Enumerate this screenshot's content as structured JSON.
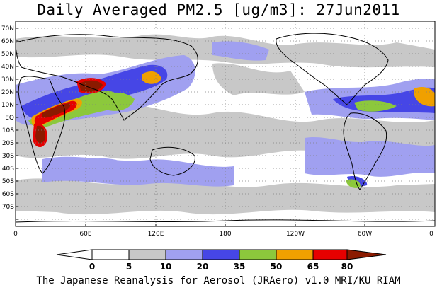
{
  "title": "Daily Averaged PM2.5 [ug/m3]: 27Jun2011",
  "footer": "The Japanese Reanalysis for Aerosol (JRAero) v1.0 MRI/KU_RIAM",
  "latitude_labels": [
    "70N",
    "60N",
    "50N",
    "40N",
    "30N",
    "20N",
    "10N",
    "EQ",
    "10S",
    "20S",
    "30S",
    "40S",
    "50S",
    "60S",
    "70S"
  ],
  "longitude_labels": [
    "0",
    "60E",
    "120E",
    "180",
    "120W",
    "60W",
    "0"
  ],
  "colorbar": {
    "thresholds": [
      "0",
      "5",
      "10",
      "20",
      "35",
      "50",
      "65",
      "80"
    ],
    "colors": [
      "#ffffff",
      "#c8c8c8",
      "#a0a0f0",
      "#4646e6",
      "#8cc83c",
      "#f0a000",
      "#e60000",
      "#8b1a00"
    ]
  },
  "map_meta": {
    "projection": "cylindrical equidistant",
    "grid": "dotted 30-degree longitude / 10-degree latitude",
    "basemap": "coastlines"
  }
}
